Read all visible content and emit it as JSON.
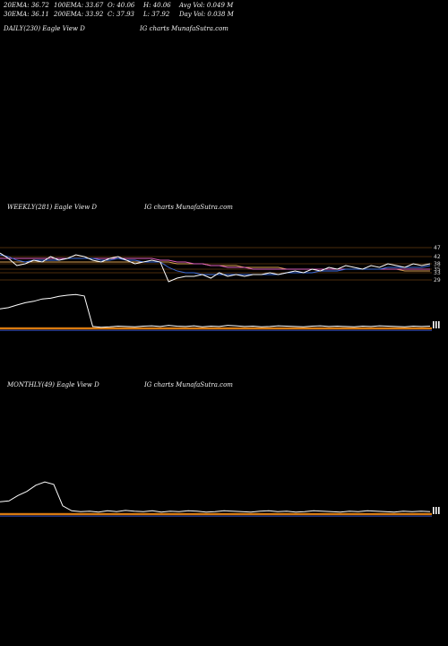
{
  "header": {
    "row1": [
      {
        "name": "ema20",
        "text": "20EMA: 36.72"
      },
      {
        "name": "ema100",
        "text": "100EMA: 33.67"
      },
      {
        "name": "open",
        "text": "O: 40.06"
      },
      {
        "name": "high",
        "text": "H: 40.06"
      },
      {
        "name": "avg-vol",
        "text": "Avg Vol: 0.049 M"
      }
    ],
    "row2": [
      {
        "name": "ema30",
        "text": "30EMA: 36.11"
      },
      {
        "name": "ema200",
        "text": "200EMA: 33.92"
      },
      {
        "name": "close",
        "text": "C: 37.93"
      },
      {
        "name": "low",
        "text": "L: 37.92"
      },
      {
        "name": "day-vol",
        "text": "Day Vol: 0.038  M"
      }
    ]
  },
  "panels": {
    "daily": {
      "label": "DAILY(230) Eagle   View  D",
      "watermark": "IG charts MunafaSutra.com"
    },
    "weekly": {
      "label": "WEEKLY(281) Eagle   View  D",
      "watermark": "IG charts MunafaSutra.com"
    },
    "monthly": {
      "label": "MONTHLY(49) Eagle   View  D",
      "watermark": "IG charts MunafaSutra.com"
    }
  },
  "chart_data": [
    {
      "type": "line",
      "panel": "weekly-price",
      "ytick_labels": [
        "47",
        "42",
        "38",
        "35",
        "33",
        "29"
      ],
      "ytick_values": [
        47,
        42,
        38,
        35,
        33,
        29
      ],
      "ylim": [
        26,
        49
      ],
      "grid": true,
      "colors": {
        "price": "#ffffff",
        "ema_short": "#3f6fe0",
        "ema_mid": "#e060c0",
        "ema_long": "#d8a050",
        "grid": "#c07020"
      },
      "series": [
        {
          "role": "price",
          "values": [
            44,
            41,
            37,
            38,
            40,
            39,
            42,
            40,
            41,
            43,
            42,
            40,
            39,
            41,
            42,
            40,
            38,
            39,
            40,
            39,
            28,
            30,
            31,
            31,
            32,
            30,
            33,
            31,
            32,
            31,
            32,
            32,
            33,
            32,
            33,
            34,
            33,
            35,
            34,
            36,
            35,
            37,
            36,
            35,
            37,
            36,
            38,
            37,
            36,
            38,
            37,
            38
          ]
        },
        {
          "role": "ema_short",
          "values": [
            43,
            42,
            40,
            39,
            40,
            40,
            40,
            40,
            41,
            41,
            41,
            41,
            40,
            40,
            41,
            40,
            40,
            39,
            39,
            39,
            36,
            34,
            33,
            33,
            32,
            32,
            32,
            32,
            32,
            32,
            32,
            32,
            32,
            32,
            33,
            33,
            33,
            33,
            34,
            34,
            34,
            35,
            35,
            35,
            35,
            35,
            36,
            36,
            36,
            36,
            36,
            37
          ]
        },
        {
          "role": "ema_mid",
          "values": [
            41,
            41,
            41,
            41,
            41,
            41,
            41,
            41,
            41,
            41,
            41,
            41,
            41,
            41,
            41,
            41,
            41,
            41,
            41,
            40,
            40,
            39,
            39,
            38,
            38,
            37,
            37,
            36,
            36,
            36,
            35,
            35,
            35,
            35,
            35,
            35,
            35,
            35,
            35,
            35,
            35,
            35,
            35,
            35,
            35,
            35,
            35,
            35,
            35,
            35,
            35,
            35
          ]
        },
        {
          "role": "ema_long",
          "values": [
            39,
            39,
            39,
            39,
            39,
            39,
            39,
            39,
            39,
            39,
            39,
            39,
            39,
            39,
            39,
            39,
            39,
            39,
            39,
            39,
            39,
            38,
            38,
            38,
            38,
            37,
            37,
            37,
            37,
            36,
            36,
            36,
            36,
            36,
            35,
            35,
            35,
            35,
            35,
            35,
            35,
            35,
            35,
            35,
            35,
            35,
            35,
            35,
            34,
            34,
            34,
            34
          ]
        }
      ]
    },
    {
      "type": "line",
      "panel": "weekly-indicator",
      "ylim": [
        0,
        100
      ],
      "colors": {
        "line": "#ffffff",
        "band": "#d87a10",
        "base": "#3050d0"
      },
      "series": [
        {
          "role": "indicator",
          "values": [
            52,
            55,
            62,
            68,
            72,
            78,
            80,
            85,
            88,
            90,
            86,
            5,
            3,
            4,
            6,
            5,
            4,
            6,
            7,
            5,
            8,
            6,
            5,
            7,
            4,
            6,
            5,
            8,
            7,
            5,
            6,
            4,
            5,
            7,
            6,
            5,
            4,
            6,
            7,
            5,
            6,
            5,
            4,
            6,
            5,
            7,
            6,
            5,
            4,
            6,
            5,
            6
          ]
        }
      ]
    },
    {
      "type": "line",
      "panel": "monthly-indicator",
      "ylim": [
        0,
        100
      ],
      "colors": {
        "line": "#ffffff",
        "band": "#d87a10",
        "base": "#3050d0"
      },
      "series": [
        {
          "role": "indicator",
          "values": [
            30,
            32,
            45,
            55,
            70,
            78,
            72,
            20,
            8,
            6,
            7,
            5,
            8,
            6,
            9,
            7,
            6,
            8,
            5,
            7,
            6,
            8,
            7,
            5,
            6,
            8,
            7,
            6,
            5,
            7,
            8,
            6,
            7,
            5,
            6,
            8,
            7,
            6,
            5,
            7,
            6,
            8,
            7,
            6,
            5,
            7,
            6,
            7,
            6
          ]
        }
      ]
    }
  ]
}
